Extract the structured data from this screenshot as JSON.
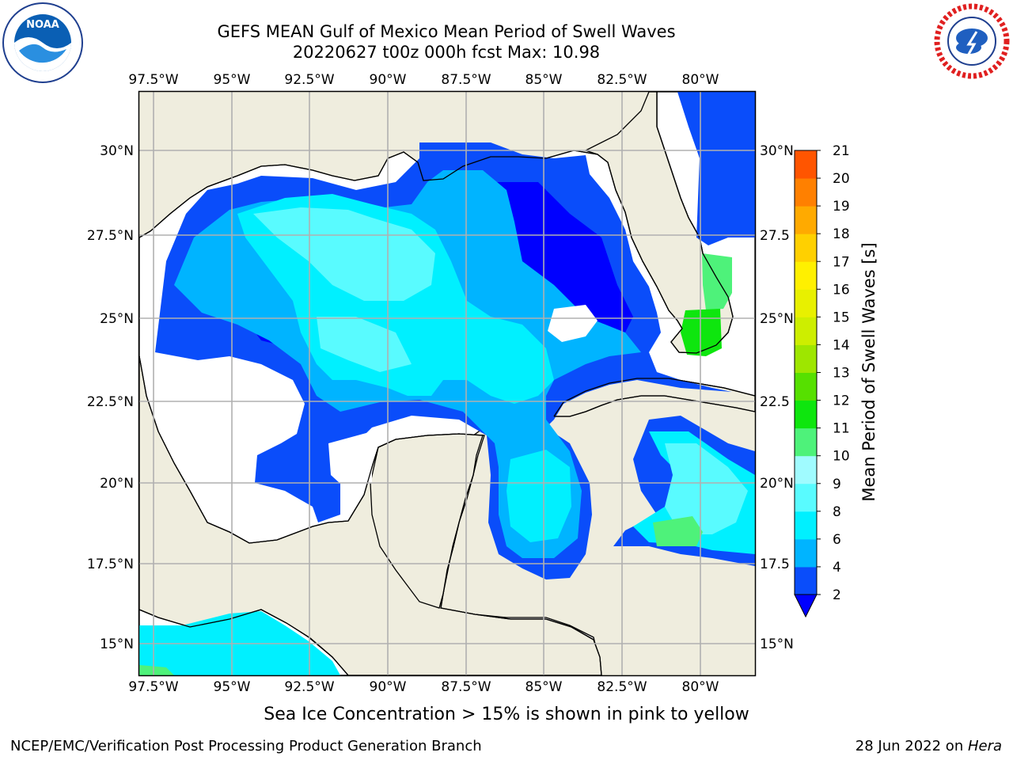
{
  "title_line1": "GEFS MEAN Gulf of Mexico Mean Period of Swell Waves",
  "title_line2": "20220627 t00z 000h fcst   Max: 10.98",
  "logos": {
    "left": "NOAA",
    "right": "NATIONAL WEATHER SERVICE"
  },
  "map": {
    "lon_ticks": [
      "97.5°W",
      "95°W",
      "92.5°W",
      "90°W",
      "87.5°W",
      "85°W",
      "82.5°W",
      "80°W"
    ],
    "lat_ticks_left": [
      "30°N",
      "27.5°N",
      "25°N",
      "22.5°N",
      "20°N",
      "17.5°N",
      "15°N"
    ],
    "lat_ticks_right": [
      "30°N",
      "27.5",
      "25°N",
      "22.5",
      "20°N",
      "17.5",
      "15°N"
    ],
    "extent": {
      "lon": [
        -98,
        -78.3
      ],
      "lat": [
        14,
        31.9
      ]
    },
    "grid": true,
    "land_color": "#efedde",
    "ocean_color": "#ffffff"
  },
  "colorbar": {
    "label": "Mean Period of Swell Waves [s]",
    "ticks": [
      "2",
      "4",
      "6",
      "8",
      "9",
      "10",
      "11",
      "12",
      "13",
      "14",
      "15",
      "16",
      "17",
      "18",
      "19",
      "20",
      "21"
    ],
    "colors": [
      "#0a4dfa",
      "#00b4ff",
      "#00f0ff",
      "#59fbff",
      "#a0fbff",
      "#4ef27a",
      "#0ee60e",
      "#56e000",
      "#9ee600",
      "#cdee00",
      "#e8f000",
      "#fff000",
      "#ffd000",
      "#ffaa00",
      "#ff8000",
      "#ff5500",
      "#ff2000",
      "#ff0000"
    ],
    "extend_color": "#0000ff"
  },
  "chart_data": {
    "type": "heatmap",
    "title": "GEFS MEAN Gulf of Mexico Mean Period of Swell Waves",
    "subtitle": "20220627 t00z 000h fcst   Max: 10.98",
    "variable": "Mean Period of Swell Waves [s]",
    "max_value": 10.98,
    "levels": [
      2,
      4,
      6,
      8,
      9,
      10,
      11,
      12,
      13,
      14,
      15,
      16,
      17,
      18,
      19,
      20,
      21
    ],
    "xlim": [
      -98,
      -78.3
    ],
    "ylim": [
      14,
      31.9
    ]
  },
  "ice_note": "Sea Ice Concentration > 15% is shown in pink to yellow",
  "footer_left": "NCEP/EMC/Verification Post Processing Product Generation Branch",
  "footer_date": "28 Jun 2022 on ",
  "footer_host": "Hera"
}
